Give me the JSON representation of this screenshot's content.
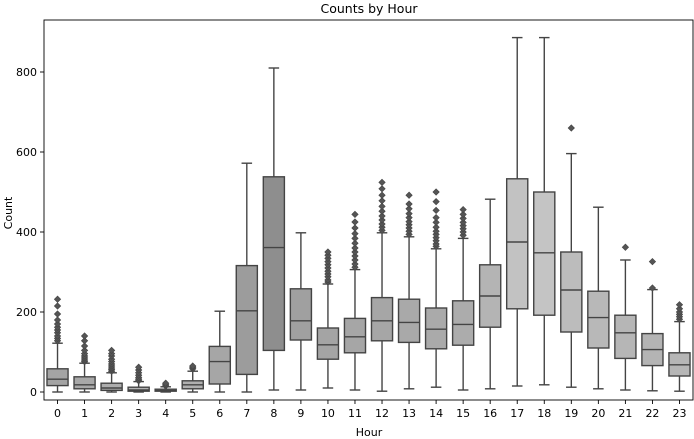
{
  "chart_data": {
    "type": "box",
    "title": "Counts by Hour",
    "xlabel": "Hour",
    "ylabel": "Count",
    "ylim": [
      -20,
      930
    ],
    "yticks": [
      0,
      200,
      400,
      600,
      800
    ],
    "grid": false,
    "legend": "none",
    "categories": [
      "0",
      "1",
      "2",
      "3",
      "4",
      "5",
      "6",
      "7",
      "8",
      "9",
      "10",
      "11",
      "12",
      "13",
      "14",
      "15",
      "16",
      "17",
      "18",
      "19",
      "20",
      "21",
      "22",
      "23"
    ],
    "boxes": [
      {
        "hour": "0",
        "whisker_low": 0,
        "q1": 16,
        "median": 32,
        "q3": 58,
        "whisker_high": 122,
        "fill": "#a4a4a4",
        "outliers": [
          128,
          134,
          140,
          148,
          155,
          162,
          170,
          180,
          195,
          215,
          232
        ]
      },
      {
        "hour": "1",
        "whisker_low": 0,
        "q1": 8,
        "median": 18,
        "q3": 38,
        "whisker_high": 72,
        "fill": "#a8a8a8",
        "outliers": [
          76,
          80,
          85,
          90,
          96,
          104,
          115,
          128,
          140
        ]
      },
      {
        "hour": "2",
        "whisker_low": 0,
        "q1": 4,
        "median": 10,
        "q3": 22,
        "whisker_high": 48,
        "fill": "#adadad",
        "outliers": [
          52,
          56,
          60,
          65,
          70,
          76,
          82,
          90,
          96,
          104
        ]
      },
      {
        "hour": "3",
        "whisker_low": 0,
        "q1": 2,
        "median": 5,
        "q3": 12,
        "whisker_high": 26,
        "fill": "#b2b2b2",
        "outliers": [
          28,
          32,
          36,
          42,
          48,
          55,
          62
        ]
      },
      {
        "hour": "4",
        "whisker_low": 0,
        "q1": 2,
        "median": 4,
        "q3": 7,
        "whisker_high": 13,
        "fill": "#b6b6b6",
        "outliers": [
          15,
          18,
          22
        ]
      },
      {
        "hour": "5",
        "whisker_low": 0,
        "q1": 8,
        "median": 18,
        "q3": 28,
        "whisker_high": 52,
        "fill": "#b0b0b0",
        "outliers": [
          58,
          62,
          65
        ]
      },
      {
        "hour": "6",
        "whisker_low": 0,
        "q1": 20,
        "median": 76,
        "q3": 114,
        "whisker_high": 202,
        "fill": "#a6a6a6",
        "outliers": []
      },
      {
        "hour": "7",
        "whisker_low": 0,
        "q1": 44,
        "median": 203,
        "q3": 316,
        "whisker_high": 572,
        "fill": "#9c9c9c",
        "outliers": []
      },
      {
        "hour": "8",
        "whisker_low": 5,
        "q1": 104,
        "median": 361,
        "q3": 538,
        "whisker_high": 810,
        "fill": "#8e8e8e",
        "outliers": []
      },
      {
        "hour": "9",
        "whisker_low": 5,
        "q1": 130,
        "median": 178,
        "q3": 258,
        "whisker_high": 398,
        "fill": "#a0a0a0",
        "outliers": []
      },
      {
        "hour": "10",
        "whisker_low": 10,
        "q1": 82,
        "median": 118,
        "q3": 160,
        "whisker_high": 270,
        "fill": "#a4a4a4",
        "outliers": [
          275,
          280,
          288,
          295,
          302,
          310,
          318,
          326,
          334,
          342,
          350
        ]
      },
      {
        "hour": "11",
        "whisker_low": 5,
        "q1": 98,
        "median": 138,
        "q3": 184,
        "whisker_high": 306,
        "fill": "#a6a6a6",
        "outliers": [
          312,
          320,
          330,
          340,
          350,
          360,
          372,
          384,
          396,
          410,
          425,
          444
        ]
      },
      {
        "hour": "12",
        "whisker_low": 2,
        "q1": 128,
        "median": 178,
        "q3": 236,
        "whisker_high": 398,
        "fill": "#a6a6a6",
        "outliers": [
          404,
          412,
          420,
          430,
          440,
          452,
          464,
          478,
          492,
          508,
          524
        ]
      },
      {
        "hour": "13",
        "whisker_low": 8,
        "q1": 124,
        "median": 174,
        "q3": 232,
        "whisker_high": 388,
        "fill": "#a9a9a9",
        "outliers": [
          394,
          402,
          410,
          418,
          426,
          436,
          446,
          458,
          470,
          492
        ]
      },
      {
        "hour": "14",
        "whisker_low": 12,
        "q1": 108,
        "median": 157,
        "q3": 210,
        "whisker_high": 358,
        "fill": "#aaaaaa",
        "outliers": [
          364,
          370,
          378,
          386,
          394,
          402,
          412,
          424,
          436,
          454,
          476,
          500
        ]
      },
      {
        "hour": "15",
        "whisker_low": 5,
        "q1": 117,
        "median": 169,
        "q3": 228,
        "whisker_high": 384,
        "fill": "#acacac",
        "outliers": [
          392,
          400,
          408,
          416,
          424,
          434,
          444,
          456
        ]
      },
      {
        "hour": "16",
        "whisker_low": 8,
        "q1": 162,
        "median": 240,
        "q3": 318,
        "whisker_high": 482,
        "fill": "#b4b4b4",
        "outliers": []
      },
      {
        "hour": "17",
        "whisker_low": 15,
        "q1": 208,
        "median": 375,
        "q3": 533,
        "whisker_high": 886,
        "fill": "#c2c2c2",
        "outliers": []
      },
      {
        "hour": "18",
        "whisker_low": 18,
        "q1": 192,
        "median": 348,
        "q3": 500,
        "whisker_high": 886,
        "fill": "#c4c4c4",
        "outliers": []
      },
      {
        "hour": "19",
        "whisker_low": 12,
        "q1": 150,
        "median": 255,
        "q3": 350,
        "whisker_high": 596,
        "fill": "#bcbcbc",
        "outliers": [
          660
        ]
      },
      {
        "hour": "20",
        "whisker_low": 8,
        "q1": 110,
        "median": 186,
        "q3": 252,
        "whisker_high": 462,
        "fill": "#b8b8b8",
        "outliers": []
      },
      {
        "hour": "21",
        "whisker_low": 5,
        "q1": 84,
        "median": 148,
        "q3": 192,
        "whisker_high": 330,
        "fill": "#b6b6b6",
        "outliers": [
          362
        ]
      },
      {
        "hour": "22",
        "whisker_low": 3,
        "q1": 66,
        "median": 106,
        "q3": 146,
        "whisker_high": 256,
        "fill": "#b4b4b4",
        "outliers": [
          260,
          326
        ]
      },
      {
        "hour": "23",
        "whisker_low": 2,
        "q1": 40,
        "median": 68,
        "q3": 98,
        "whisker_high": 176,
        "fill": "#b6b6b6",
        "outliers": [
          182,
          188,
          194,
          200,
          208,
          218
        ]
      }
    ]
  }
}
